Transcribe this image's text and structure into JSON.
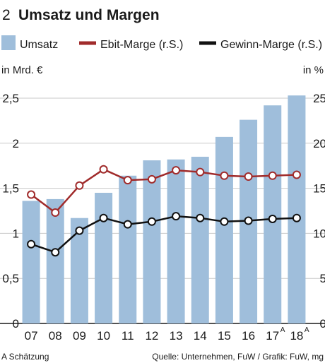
{
  "chart_data": {
    "type": "bar",
    "chart_number": "2",
    "title": "Umsatz und Margen",
    "left_axis_unit": "in Mrd. €",
    "right_axis_unit": "in %",
    "categories": [
      "07",
      "08",
      "09",
      "10",
      "11",
      "12",
      "13",
      "14",
      "15",
      "16",
      "17",
      "18"
    ],
    "category_superscripts": [
      "",
      "",
      "",
      "",
      "",
      "",
      "",
      "",
      "",
      "",
      "A",
      "A"
    ],
    "left_ylim": [
      0,
      2.5
    ],
    "left_ticks": [
      "0",
      "0,5",
      "1",
      "1,5",
      "2",
      "2,5"
    ],
    "right_ylim": [
      0,
      25
    ],
    "right_ticks": [
      "0",
      "5",
      "10",
      "15",
      "20",
      "25"
    ],
    "grid": true,
    "legend_position": "top",
    "series": [
      {
        "name": "Umsatz",
        "kind": "bar",
        "axis": "left",
        "color": "#9fbedb",
        "values": [
          1.36,
          1.38,
          1.17,
          1.45,
          1.64,
          1.81,
          1.82,
          1.85,
          2.07,
          2.26,
          2.42,
          2.53
        ]
      },
      {
        "name": "Ebit-Marge (r.S.)",
        "kind": "line",
        "axis": "right",
        "color": "#a02b2b",
        "values": [
          14.3,
          12.3,
          15.3,
          17.1,
          15.9,
          16.0,
          17.0,
          16.8,
          16.4,
          16.3,
          16.4,
          16.5
        ]
      },
      {
        "name": "Gewinn-Marge (r.S.)",
        "kind": "line",
        "axis": "right",
        "color": "#111111",
        "values": [
          8.8,
          7.9,
          10.3,
          11.7,
          11.0,
          11.3,
          11.9,
          11.7,
          11.3,
          11.4,
          11.6,
          11.7
        ]
      }
    ],
    "footnote": "A Schätzung",
    "source": "Quelle: Unternehmen, FuW / Grafik: FuW, mg"
  }
}
